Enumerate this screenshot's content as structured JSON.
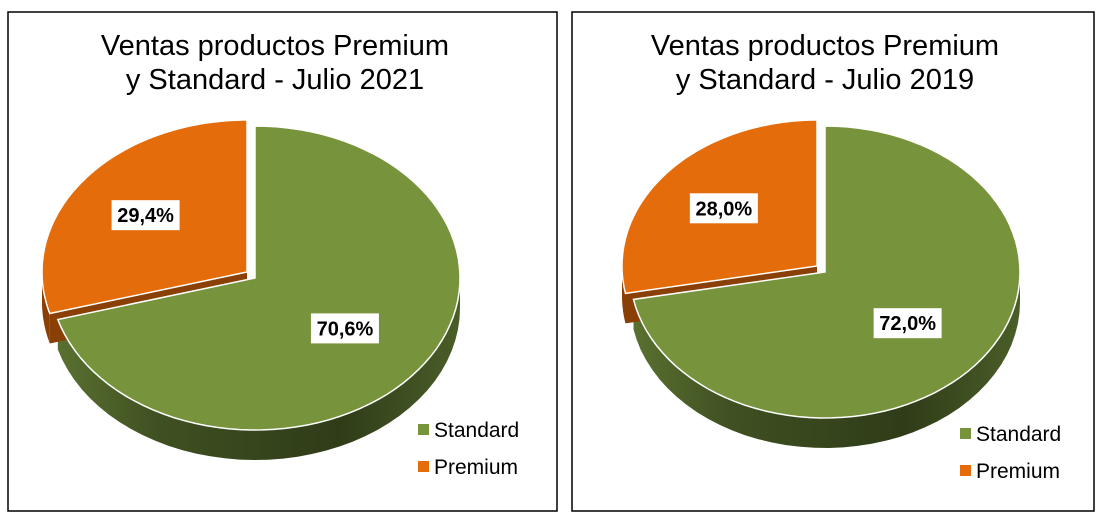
{
  "colors": {
    "Standard": "#77933c",
    "Premium": "#e46c0a"
  },
  "chart_data": [
    {
      "type": "pie",
      "style": "3d-exploded",
      "title": [
        "Ventas productos Premium",
        "y Standard - Julio 2021"
      ],
      "categories": [
        "Standard",
        "Premium"
      ],
      "values": [
        70.6,
        29.4
      ],
      "data_labels": [
        "70,6%",
        "29,4%"
      ],
      "legend": {
        "position": "bottom-right",
        "entries": [
          "Standard",
          "Premium"
        ]
      }
    },
    {
      "type": "pie",
      "style": "3d-exploded",
      "title": [
        "Ventas productos Premium",
        "y Standard - Julio 2019"
      ],
      "categories": [
        "Standard",
        "Premium"
      ],
      "values": [
        72.0,
        28.0
      ],
      "data_labels": [
        "72,0%",
        "28,0%"
      ],
      "legend": {
        "position": "bottom-right",
        "entries": [
          "Standard",
          "Premium"
        ]
      }
    }
  ]
}
